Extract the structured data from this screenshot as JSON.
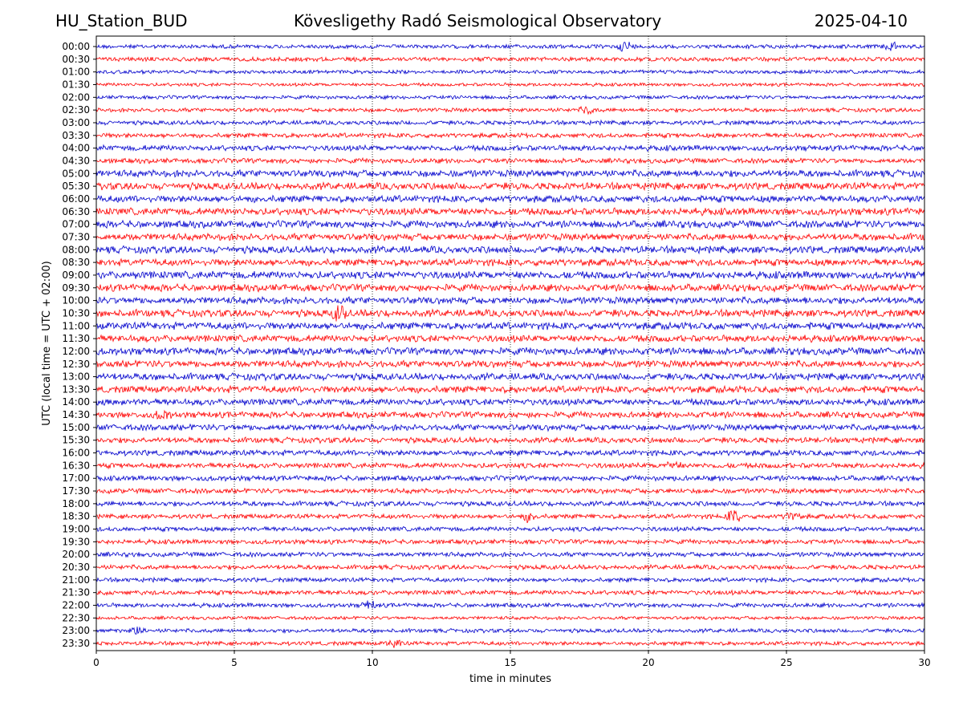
{
  "header": {
    "left": "HU_Station_BUD",
    "center": "Kövesligethy Radó Seismological Observatory",
    "right": "2025-04-10"
  },
  "chart_data": {
    "type": "line",
    "title": "Kövesligethy Radó Seismological Observatory",
    "xlabel": "time in minutes",
    "ylabel": "UTC (local time = UTC + 02:00)",
    "xlim": [
      0,
      30
    ],
    "xticks": [
      0,
      5,
      10,
      15,
      20,
      25,
      30
    ],
    "vertical_gridlines": [
      5,
      10,
      15,
      20,
      25
    ],
    "grid": "vertical dotted",
    "line_colors": [
      "#0000cc",
      "#ff0000"
    ],
    "rows": [
      "00:00",
      "00:30",
      "01:00",
      "01:30",
      "02:00",
      "02:30",
      "03:00",
      "03:30",
      "04:00",
      "04:30",
      "05:00",
      "05:30",
      "06:00",
      "06:30",
      "07:00",
      "07:30",
      "08:00",
      "08:30",
      "09:00",
      "09:30",
      "10:00",
      "10:30",
      "11:00",
      "11:30",
      "12:00",
      "12:30",
      "13:00",
      "13:30",
      "14:00",
      "14:30",
      "15:00",
      "15:30",
      "16:00",
      "16:30",
      "17:00",
      "17:30",
      "18:00",
      "18:30",
      "19:00",
      "19:30",
      "20:00",
      "20:30",
      "21:00",
      "21:30",
      "22:00",
      "22:30",
      "23:00",
      "23:30"
    ],
    "relative_noise_level": [
      0.35,
      0.4,
      0.3,
      0.25,
      0.3,
      0.35,
      0.4,
      0.45,
      0.6,
      0.5,
      0.8,
      0.85,
      0.8,
      0.85,
      0.85,
      0.8,
      0.85,
      0.8,
      0.9,
      0.85,
      0.8,
      0.85,
      0.85,
      0.8,
      0.85,
      0.8,
      0.8,
      0.8,
      0.75,
      0.7,
      0.7,
      0.6,
      0.6,
      0.55,
      0.55,
      0.5,
      0.5,
      0.45,
      0.45,
      0.45,
      0.45,
      0.45,
      0.4,
      0.45,
      0.4,
      0.25,
      0.35,
      0.35
    ],
    "events": [
      {
        "row": "00:00",
        "minute": 19.2,
        "strength": 2.5
      },
      {
        "row": "00:00",
        "minute": 28.8,
        "strength": 2.0
      },
      {
        "row": "02:30",
        "minute": 17.8,
        "strength": 1.8
      },
      {
        "row": "10:30",
        "minute": 8.8,
        "strength": 3.5
      },
      {
        "row": "14:30",
        "minute": 2.4,
        "strength": 1.8
      },
      {
        "row": "16:30",
        "minute": 20.9,
        "strength": 1.8
      },
      {
        "row": "18:30",
        "minute": 15.7,
        "strength": 2.2
      },
      {
        "row": "18:30",
        "minute": 23.1,
        "strength": 3.0
      },
      {
        "row": "18:30",
        "minute": 25.2,
        "strength": 2.0
      },
      {
        "row": "22:00",
        "minute": 9.9,
        "strength": 1.8
      },
      {
        "row": "23:00",
        "minute": 1.5,
        "strength": 1.8
      },
      {
        "row": "23:30",
        "minute": 10.8,
        "strength": 1.8
      }
    ]
  }
}
